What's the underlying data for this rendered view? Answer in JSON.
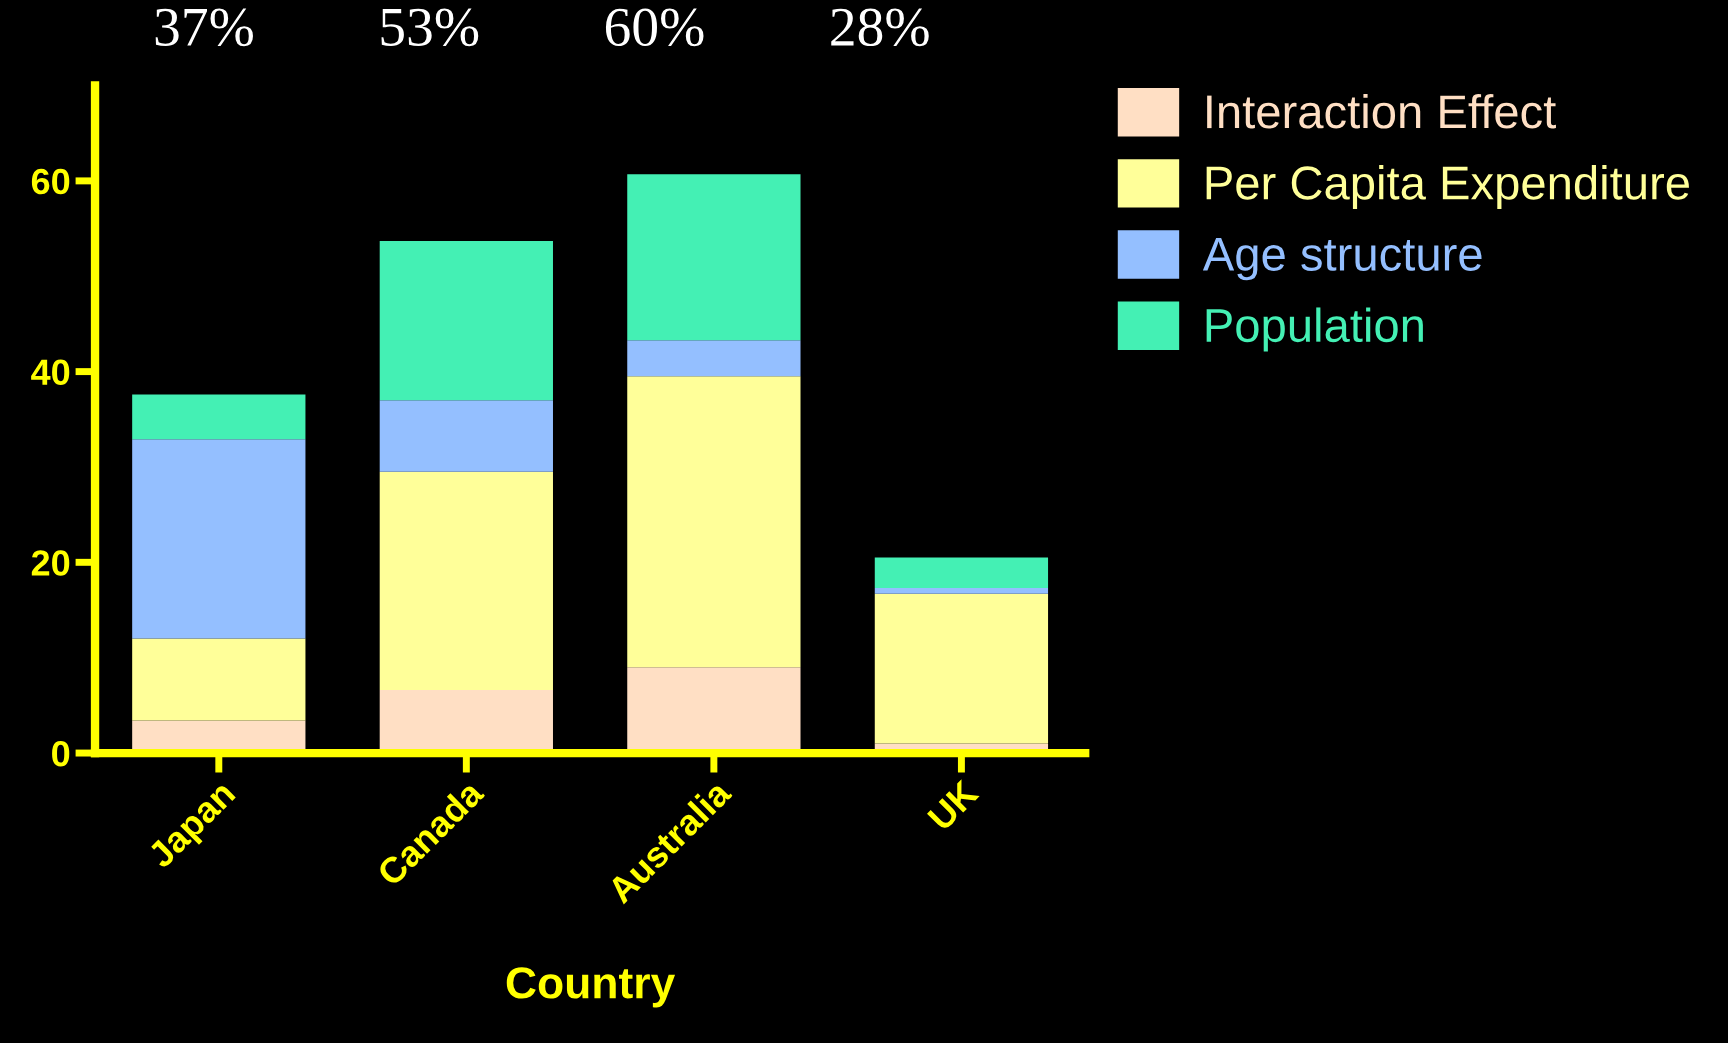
{
  "chart_data": {
    "type": "bar",
    "stacked": true,
    "xlabel": "Country",
    "categories": [
      "Japan",
      "Canada",
      "Australia",
      "UK"
    ],
    "series": [
      {
        "name": "Interaction Effect",
        "color": "#ffdfc4",
        "values": [
          3.4,
          6.6,
          9.0,
          1.0
        ]
      },
      {
        "name": "Per Capita Expenditure",
        "color": "#ffff99",
        "values": [
          8.6,
          22.9,
          30.5,
          15.7
        ]
      },
      {
        "name": "Age structure",
        "color": "#94bfff",
        "values": [
          20.9,
          7.5,
          3.8,
          0.6
        ]
      },
      {
        "name": "Population",
        "color": "#44f0b4",
        "values": [
          4.7,
          16.7,
          17.4,
          3.2
        ]
      }
    ],
    "annotations": [
      "37%",
      "53%",
      "60%",
      "28%"
    ],
    "ylim": [
      0,
      70
    ],
    "yticks": [
      0,
      20,
      40,
      60
    ],
    "grid": false,
    "legend": "top right"
  }
}
